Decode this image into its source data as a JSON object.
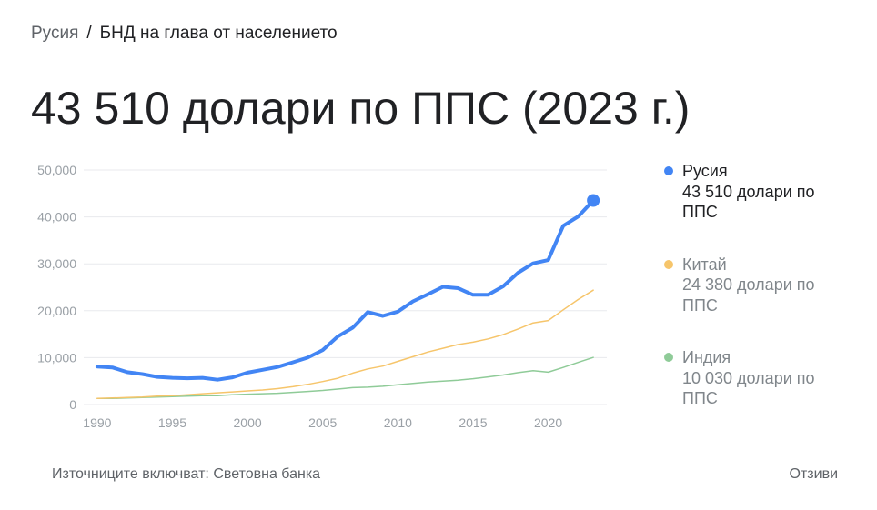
{
  "breadcrumb": {
    "root": "Русия",
    "separator": "/",
    "current": "БНД на глава от населението"
  },
  "headline": "43 510 долари по ППС (2023 г.)",
  "legend": [
    {
      "name": "Русия",
      "value": "43 510 долари по ППС",
      "color": "#4285f4",
      "state": "active"
    },
    {
      "name": "Китай",
      "value": "24 380 долари по ППС",
      "color": "#f6c56b",
      "state": "inactive"
    },
    {
      "name": "Индия",
      "value": "10 030 долари по ППС",
      "color": "#8fcb98",
      "state": "inactive"
    }
  ],
  "footer": {
    "source": "Източниците включват: Световна банка",
    "feedback": "Отзиви"
  },
  "chart_data": {
    "type": "line",
    "title": "",
    "xlabel": "",
    "ylabel": "",
    "xlim": [
      1990,
      2023
    ],
    "ylim": [
      0,
      50000
    ],
    "x_ticks": [
      1990,
      1995,
      2000,
      2005,
      2010,
      2015,
      2020
    ],
    "x_tick_labels": [
      "1990",
      "1995",
      "2000",
      "2005",
      "2010",
      "2015",
      "2020"
    ],
    "y_ticks": [
      0,
      10000,
      20000,
      30000,
      40000,
      50000
    ],
    "y_tick_labels": [
      "0",
      "10,000",
      "20,000",
      "30,000",
      "40,000",
      "50,000"
    ],
    "grid": true,
    "legend_position": "right",
    "x": [
      1990,
      1991,
      1992,
      1993,
      1994,
      1995,
      1996,
      1997,
      1998,
      1999,
      2000,
      2001,
      2002,
      2003,
      2004,
      2005,
      2006,
      2007,
      2008,
      2009,
      2010,
      2011,
      2012,
      2013,
      2014,
      2015,
      2016,
      2017,
      2018,
      2019,
      2020,
      2021,
      2022,
      2023
    ],
    "series": [
      {
        "name": "Русия",
        "color": "#4285f4",
        "values": [
          8100,
          7900,
          6900,
          6500,
          5900,
          5700,
          5600,
          5700,
          5300,
          5800,
          6800,
          7400,
          8000,
          9000,
          10000,
          11600,
          14500,
          16400,
          19700,
          18900,
          19800,
          22000,
          23500,
          25100,
          24800,
          23400,
          23400,
          25200,
          28100,
          30100,
          30800,
          38100,
          40100,
          43510
        ]
      },
      {
        "name": "Китай",
        "color": "#f6c56b",
        "values": [
          1300,
          1400,
          1500,
          1600,
          1800,
          1900,
          2100,
          2300,
          2500,
          2700,
          2900,
          3100,
          3400,
          3800,
          4300,
          4900,
          5600,
          6700,
          7600,
          8200,
          9200,
          10200,
          11200,
          12000,
          12800,
          13300,
          14000,
          14900,
          16100,
          17400,
          17900,
          20200,
          22400,
          24380
        ]
      },
      {
        "name": "Индия",
        "color": "#8fcb98",
        "values": [
          1300,
          1300,
          1400,
          1500,
          1600,
          1700,
          1800,
          1900,
          1900,
          2100,
          2200,
          2300,
          2400,
          2600,
          2800,
          3000,
          3300,
          3600,
          3700,
          3900,
          4200,
          4500,
          4800,
          5000,
          5200,
          5500,
          5900,
          6300,
          6800,
          7200,
          6900,
          7900,
          9000,
          10030
        ]
      }
    ],
    "highlight_last_point": "Русия"
  }
}
